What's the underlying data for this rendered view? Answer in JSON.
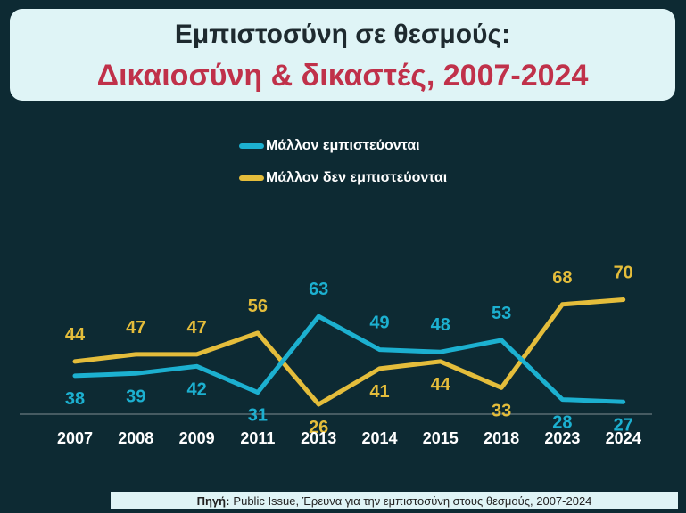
{
  "header": {
    "title": "Εμπιστοσύνη σε θεσμούς:",
    "subtitle": "Δικαιοσύνη & δικαστές, 2007-2024"
  },
  "source": {
    "label": "Πηγή:",
    "text": "Public Issue, Έρευνα για την εμπιστοσύνη στους θεσμούς, 2007-2024"
  },
  "colors": {
    "trust": "#1cb0d0",
    "distrust": "#e4bd3b"
  },
  "chart_data": {
    "type": "line",
    "categories": [
      "2007",
      "2008",
      "2009",
      "2011",
      "2013",
      "2014",
      "2015",
      "2018",
      "2023",
      "2024"
    ],
    "series": [
      {
        "name": "Μάλλον εμπιστεύονται",
        "values": [
          38,
          39,
          42,
          31,
          63,
          49,
          48,
          53,
          28,
          27
        ]
      },
      {
        "name": "Μάλλον δεν εμπιστεύονται",
        "values": [
          44,
          47,
          47,
          56,
          26,
          41,
          44,
          33,
          68,
          70
        ]
      }
    ],
    "legend_position": "top-center",
    "grid": false,
    "data_labels": true
  }
}
